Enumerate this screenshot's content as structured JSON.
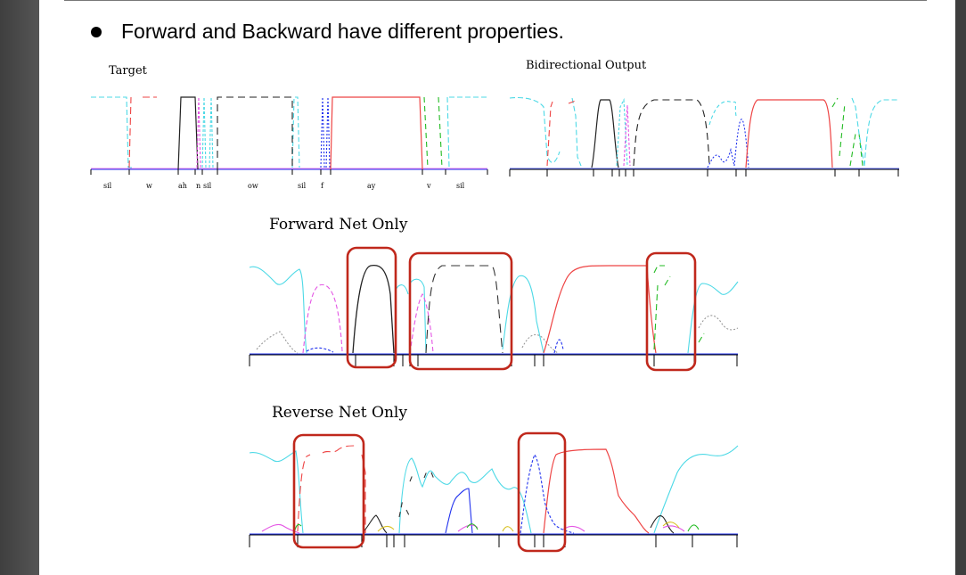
{
  "bullet": {
    "text": "Forward and Backward have different properties."
  },
  "panels": {
    "target": {
      "title": "Target"
    },
    "bidirectional": {
      "title": "Bidirectional Output"
    },
    "forward": {
      "title": "Forward Net Only"
    },
    "reverse": {
      "title": "Reverse Net Only"
    }
  },
  "phones": [
    "sil",
    "w",
    "ah",
    "n",
    "sil",
    "ow",
    "sil",
    "f",
    "ay",
    "v",
    "sil"
  ],
  "colors": {
    "cyan": "#4dd9e6",
    "red": "#ee4444",
    "black": "#222222",
    "magenta": "#e455e4",
    "blue": "#2233ee",
    "green": "#22bb22",
    "gray": "#999999",
    "yellow": "#d8c020",
    "highlight": "#c0281c"
  }
}
